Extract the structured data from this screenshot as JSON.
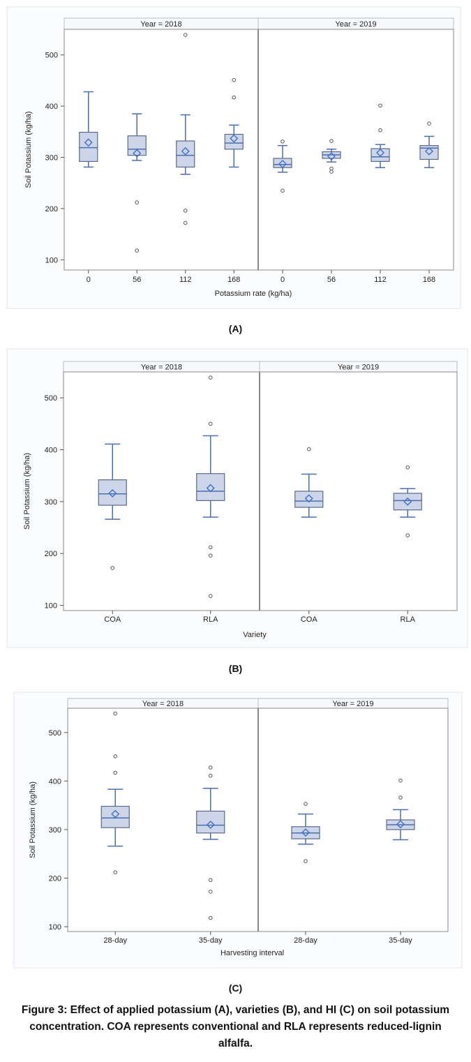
{
  "figure": {
    "caption": "Figure 3: Effect of applied potassium (A), varieties (B), and HI (C) on soil potassium concentration. COA represents conventional and RLA represents reduced-lignin alfalfa."
  },
  "colors": {
    "box_fill": "#cdd6e8",
    "box_stroke": "#5a6a8c",
    "whisker": "#4a6fb0",
    "median": "#4a6fb0",
    "mean_marker": "#3f6fd0",
    "outlier": "#555555",
    "frame": "#888888",
    "header_fill": "#f7f9fd",
    "outer_bg": "#fbfcfe"
  },
  "chart_data": [
    {
      "id": "A",
      "panel_label": "(A)",
      "type": "box",
      "ylabel": "Soil Potassium (kg/ha)",
      "xlabel": "Potassium rate (kg/ha)",
      "ylim": [
        80,
        550
      ],
      "yticks": [
        100,
        200,
        300,
        400,
        500
      ],
      "facets": [
        {
          "title": "Year = 2018",
          "categories": [
            "0",
            "56",
            "112",
            "168"
          ],
          "boxes": [
            {
              "min": 281,
              "q1": 292,
              "median": 319,
              "q3": 349,
              "max": 428,
              "mean": 329,
              "outliers": []
            },
            {
              "min": 294,
              "q1": 304,
              "median": 316,
              "q3": 342,
              "max": 385,
              "mean": 308,
              "outliers": [
                212,
                118
              ]
            },
            {
              "min": 267,
              "q1": 281,
              "median": 304,
              "q3": 332,
              "max": 383,
              "mean": 312,
              "outliers": [
                539,
                196,
                172
              ]
            },
            {
              "min": 281,
              "q1": 316,
              "median": 328,
              "q3": 345,
              "max": 363,
              "mean": 337,
              "outliers": [
                451,
                417
              ]
            }
          ]
        },
        {
          "title": "Year = 2019",
          "categories": [
            "0",
            "56",
            "112",
            "168"
          ],
          "boxes": [
            {
              "min": 271,
              "q1": 280,
              "median": 286,
              "q3": 298,
              "max": 323,
              "mean": 287,
              "outliers": [
                331,
                235
              ]
            },
            {
              "min": 291,
              "q1": 298,
              "median": 305,
              "q3": 311,
              "max": 316,
              "mean": 302,
              "outliers": [
                332,
                278,
                272
              ]
            },
            {
              "min": 280,
              "q1": 292,
              "median": 301,
              "q3": 317,
              "max": 325,
              "mean": 309,
              "outliers": [
                401,
                353
              ]
            },
            {
              "min": 280,
              "q1": 296,
              "median": 318,
              "q3": 323,
              "max": 341,
              "mean": 312,
              "outliers": [
                366
              ]
            }
          ]
        }
      ]
    },
    {
      "id": "B",
      "panel_label": "(B)",
      "type": "box",
      "ylabel": "Soil Potassium (kg/ha)",
      "xlabel": "Variety",
      "ylim": [
        90,
        550
      ],
      "yticks": [
        100,
        200,
        300,
        400,
        500
      ],
      "facets": [
        {
          "title": "Year = 2018",
          "categories": [
            "COA",
            "RLA"
          ],
          "boxes": [
            {
              "min": 266,
              "q1": 293,
              "median": 315,
              "q3": 342,
              "max": 411,
              "mean": 316,
              "outliers": [
                172
              ]
            },
            {
              "min": 270,
              "q1": 302,
              "median": 320,
              "q3": 354,
              "max": 427,
              "mean": 326,
              "outliers": [
                539,
                450,
                212,
                196,
                118
              ]
            }
          ]
        },
        {
          "title": "Year = 2019",
          "categories": [
            "COA",
            "RLA"
          ],
          "boxes": [
            {
              "min": 270,
              "q1": 289,
              "median": 301,
              "q3": 320,
              "max": 353,
              "mean": 306,
              "outliers": [
                401
              ]
            },
            {
              "min": 270,
              "q1": 284,
              "median": 302,
              "q3": 316,
              "max": 325,
              "mean": 300,
              "outliers": [
                366,
                235
              ]
            }
          ]
        }
      ]
    },
    {
      "id": "C",
      "panel_label": "(C)",
      "type": "box",
      "ylabel": "Soil Potassium (kg/ha)",
      "xlabel": "Harvesting interval",
      "ylim": [
        90,
        550
      ],
      "yticks": [
        100,
        200,
        300,
        400,
        500
      ],
      "facets": [
        {
          "title": "Year = 2018",
          "categories": [
            "28-day",
            "35-day"
          ],
          "boxes": [
            {
              "min": 266,
              "q1": 304,
              "median": 324,
              "q3": 348,
              "max": 383,
              "mean": 332,
              "outliers": [
                539,
                451,
                417,
                212
              ]
            },
            {
              "min": 280,
              "q1": 293,
              "median": 309,
              "q3": 338,
              "max": 385,
              "mean": 310,
              "outliers": [
                428,
                411,
                196,
                172,
                118
              ]
            }
          ]
        },
        {
          "title": "Year = 2019",
          "categories": [
            "28-day",
            "35-day"
          ],
          "boxes": [
            {
              "min": 270,
              "q1": 281,
              "median": 293,
              "q3": 306,
              "max": 332,
              "mean": 294,
              "outliers": [
                353,
                235
              ]
            },
            {
              "min": 279,
              "q1": 300,
              "median": 310,
              "q3": 320,
              "max": 341,
              "mean": 311,
              "outliers": [
                401,
                366
              ]
            }
          ]
        }
      ]
    }
  ]
}
